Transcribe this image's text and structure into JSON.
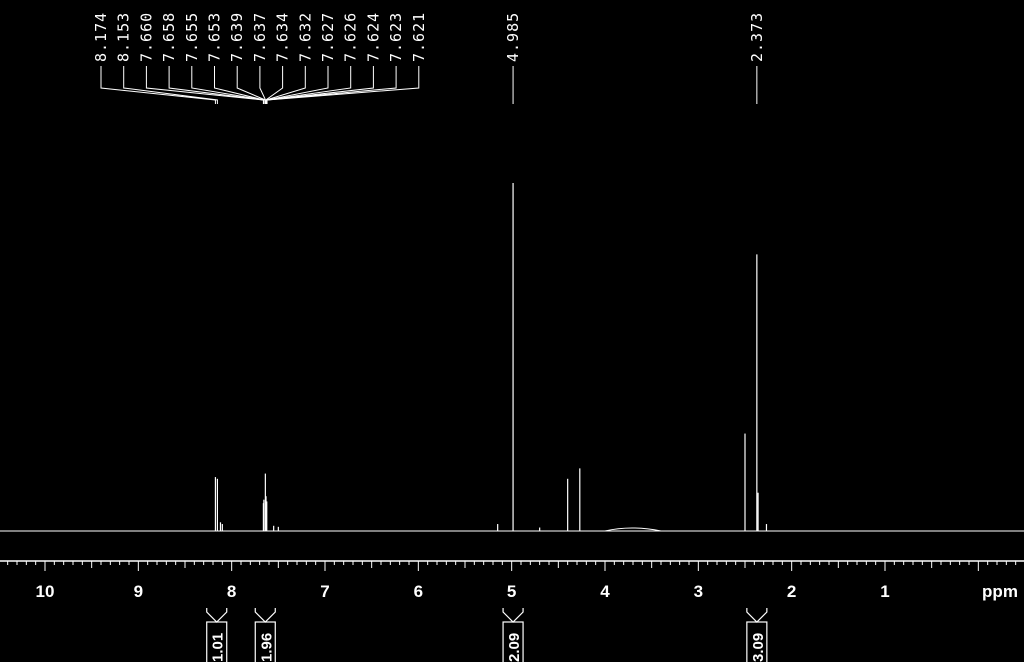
{
  "chart_data": {
    "type": "line",
    "title": "",
    "xlabel": "ppm",
    "ylabel": "",
    "xlim": [
      10.4,
      -0.5
    ],
    "x_ticks": [
      10,
      9,
      8,
      7,
      6,
      5,
      4,
      3,
      2,
      1
    ],
    "x_tick_labels": [
      "10",
      "9",
      "8",
      "7",
      "6",
      "5",
      "4",
      "3",
      "2",
      "1"
    ],
    "axis_unit_label": "ppm",
    "grid": false,
    "colors": {
      "background": "#000000",
      "foreground": "#ffffff"
    },
    "peak_labels": [
      {
        "text": "8.174",
        "ppm": 8.174
      },
      {
        "text": "8.153",
        "ppm": 8.153
      },
      {
        "text": "7.660",
        "ppm": 7.66
      },
      {
        "text": "7.658",
        "ppm": 7.658
      },
      {
        "text": "7.655",
        "ppm": 7.655
      },
      {
        "text": "7.653",
        "ppm": 7.653
      },
      {
        "text": "7.639",
        "ppm": 7.639
      },
      {
        "text": "7.637",
        "ppm": 7.637
      },
      {
        "text": "7.634",
        "ppm": 7.634
      },
      {
        "text": "7.632",
        "ppm": 7.632
      },
      {
        "text": "7.627",
        "ppm": 7.627
      },
      {
        "text": "7.626",
        "ppm": 7.626
      },
      {
        "text": "7.624",
        "ppm": 7.624
      },
      {
        "text": "7.623",
        "ppm": 7.623
      },
      {
        "text": "7.621",
        "ppm": 7.621
      },
      {
        "text": "4.985",
        "ppm": 4.985
      },
      {
        "text": "2.373",
        "ppm": 2.373
      }
    ],
    "integrals": [
      {
        "text": "1.01",
        "ppm": 8.16
      },
      {
        "text": "1.96",
        "ppm": 7.64
      },
      {
        "text": "2.09",
        "ppm": 4.985
      },
      {
        "text": "3.09",
        "ppm": 2.373
      }
    ],
    "peaks": [
      {
        "ppm": 8.174,
        "height": 0.155
      },
      {
        "ppm": 8.153,
        "height": 0.15
      },
      {
        "ppm": 8.12,
        "height": 0.025
      },
      {
        "ppm": 8.1,
        "height": 0.02
      },
      {
        "ppm": 7.66,
        "height": 0.08
      },
      {
        "ppm": 7.655,
        "height": 0.09
      },
      {
        "ppm": 7.639,
        "height": 0.165
      },
      {
        "ppm": 7.632,
        "height": 0.1
      },
      {
        "ppm": 7.624,
        "height": 0.085
      },
      {
        "ppm": 7.55,
        "height": 0.015
      },
      {
        "ppm": 7.5,
        "height": 0.012
      },
      {
        "ppm": 5.15,
        "height": 0.02
      },
      {
        "ppm": 4.985,
        "height": 1.0
      },
      {
        "ppm": 4.7,
        "height": 0.01
      },
      {
        "ppm": 4.4,
        "height": 0.15
      },
      {
        "ppm": 4.27,
        "height": 0.18
      },
      {
        "ppm": 2.5,
        "height": 0.28
      },
      {
        "ppm": 2.373,
        "height": 0.795
      },
      {
        "ppm": 2.36,
        "height": 0.11
      },
      {
        "ppm": 2.27,
        "height": 0.02
      }
    ]
  }
}
